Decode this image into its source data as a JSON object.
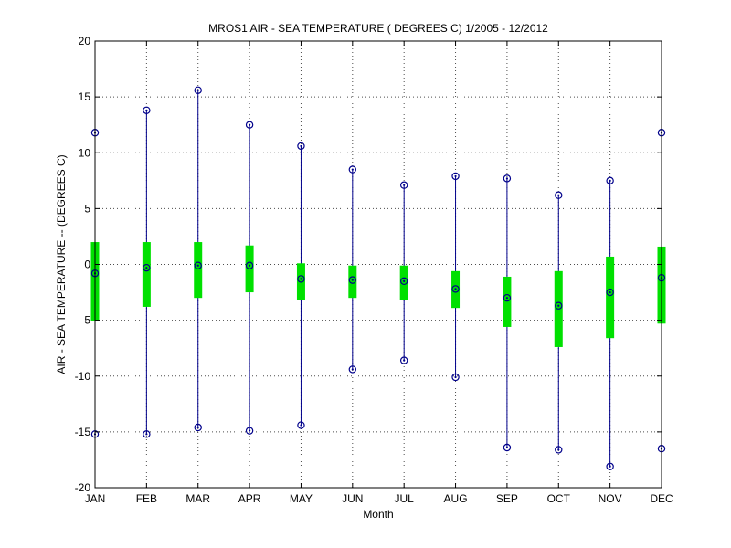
{
  "chart_data": {
    "type": "box",
    "title": "MROS1  AIR - SEA TEMPERATURE ( DEGREES C) 1/2005 - 12/2012",
    "xlabel": "Month",
    "ylabel": "AIR - SEA TEMPERATURE -- (DEGREES C)",
    "ylim": [
      -20,
      20
    ],
    "yticks": [
      -20,
      -15,
      -10,
      -5,
      0,
      5,
      10,
      15,
      20
    ],
    "grid": true,
    "categories": [
      "JAN",
      "FEB",
      "MAR",
      "APR",
      "MAY",
      "JUN",
      "JUL",
      "AUG",
      "SEP",
      "OCT",
      "NOV",
      "DEC"
    ],
    "min": [
      -15.2,
      -15.2,
      -14.6,
      -14.9,
      -14.4,
      -9.4,
      -8.6,
      -10.1,
      -16.4,
      -16.6,
      -18.1,
      -16.5
    ],
    "q1": [
      -5.1,
      -3.8,
      -3.0,
      -2.5,
      -3.2,
      -3.0,
      -3.2,
      -3.9,
      -5.6,
      -7.4,
      -6.6,
      -5.3
    ],
    "median": [
      -0.8,
      -0.3,
      -0.1,
      -0.1,
      -1.3,
      -1.4,
      -1.5,
      -2.2,
      -3.0,
      -3.7,
      -2.5,
      -1.2
    ],
    "q3": [
      2.0,
      2.0,
      2.0,
      1.7,
      0.1,
      -0.1,
      -0.1,
      -0.6,
      -1.1,
      -0.6,
      0.7,
      1.6
    ],
    "max": [
      11.8,
      13.8,
      15.6,
      12.5,
      10.6,
      8.5,
      7.1,
      7.9,
      7.7,
      6.2,
      7.5,
      11.8
    ],
    "colors": {
      "whisker": "#00008b",
      "box": "#00e000",
      "marker": "#00008b",
      "grid": "#000000"
    }
  }
}
